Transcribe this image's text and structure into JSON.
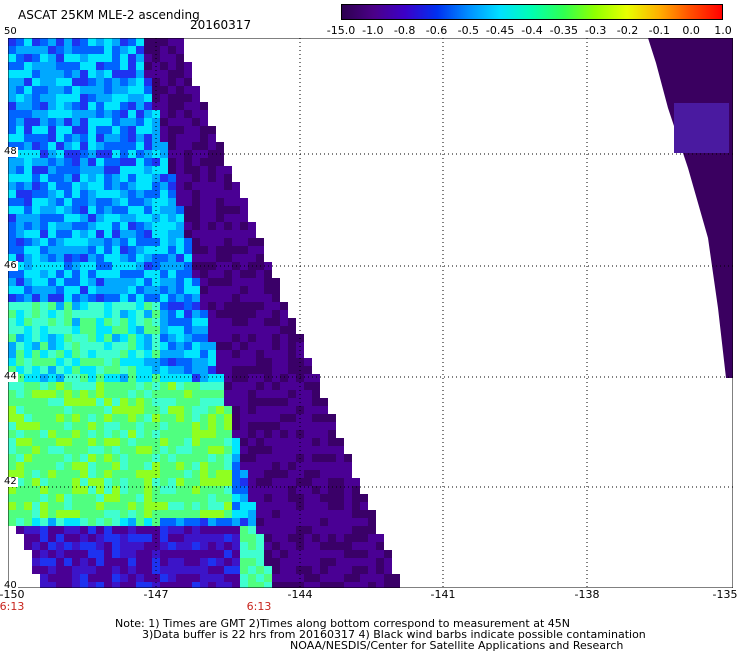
{
  "header": {
    "title": "ASCAT 25KM MLE-2 ascending",
    "date": "20160317"
  },
  "colorbar": {
    "labels": [
      "-15.0",
      "-1.0",
      "-0.8",
      "-0.6",
      "-0.5",
      "-0.45",
      "-0.4",
      "-0.35",
      "-0.3",
      "-0.2",
      "-0.1",
      "0.0",
      "1.0"
    ],
    "colors": [
      "#2d0050",
      "#4b0088",
      "#3c00c8",
      "#0030f0",
      "#0090ff",
      "#00e0ff",
      "#00ffb0",
      "#30ff50",
      "#90ff00",
      "#e8ff00",
      "#ffb000",
      "#ff5000",
      "#ff0000"
    ]
  },
  "map": {
    "lat_labels": [
      "50",
      "48",
      "46",
      "44",
      "42",
      "40"
    ],
    "lon_labels": [
      "-150",
      "-147",
      "-144",
      "-141",
      "-138",
      "-135"
    ],
    "time_labels": [
      "6:13",
      "6:13"
    ],
    "swath_color_left": "MLE field swath (blue/green/purple)",
    "swath_color_right": "#3a0060"
  },
  "footer": {
    "line1": "Note: 1) Times are GMT 2)Times along bottom correspond to measurement at 45N",
    "line2": "3)Data buffer is 22 hrs from 20160317 4) Black wind barbs indicate possible contamination",
    "line3": "NOAA/NESDIS/Center for Satellite Applications and Research"
  }
}
